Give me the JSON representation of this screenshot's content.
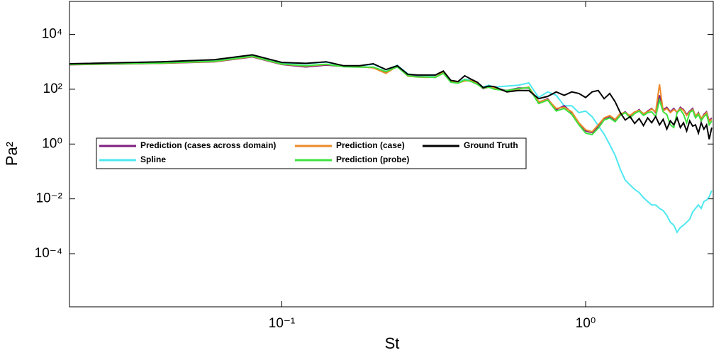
{
  "chart_data": {
    "type": "line",
    "x_label": "St",
    "y_label": "Pa²",
    "xscale": "log",
    "yscale": "log",
    "xlim": [
      0.02,
      2.63
    ],
    "ylim": [
      1.15e-06,
      160000
    ],
    "xticks": [
      {
        "value": 0.1,
        "label": "10⁻¹"
      },
      {
        "value": 1,
        "label": "10⁰"
      }
    ],
    "yticks": [
      {
        "value": 0.0001,
        "label": "10⁻⁴"
      },
      {
        "value": 0.01,
        "label": "10⁻²"
      },
      {
        "value": 1,
        "label": "10⁰"
      },
      {
        "value": 100,
        "label": "10²"
      },
      {
        "value": 10000,
        "label": "10⁴"
      }
    ],
    "x": [
      0.02,
      0.04,
      0.06,
      0.08,
      0.1,
      0.12,
      0.14,
      0.16,
      0.18,
      0.2,
      0.22,
      0.24,
      0.26,
      0.28,
      0.3,
      0.32,
      0.34,
      0.36,
      0.38,
      0.4,
      0.42,
      0.44,
      0.46,
      0.48,
      0.5,
      0.55,
      0.6,
      0.65,
      0.7,
      0.75,
      0.8,
      0.85,
      0.9,
      0.95,
      1.0,
      1.05,
      1.1,
      1.15,
      1.2,
      1.25,
      1.3,
      1.35,
      1.4,
      1.45,
      1.5,
      1.55,
      1.6,
      1.65,
      1.7,
      1.75,
      1.8,
      1.85,
      1.9,
      1.95,
      2.0,
      2.05,
      2.1,
      2.15,
      2.2,
      2.25,
      2.3,
      2.35,
      2.4,
      2.45,
      2.5,
      2.55,
      2.6
    ],
    "series": [
      {
        "name": "Prediction (cases across domain)",
        "color": "#7e1e80",
        "values": [
          780,
          880,
          1000,
          1500,
          800,
          650,
          760,
          680,
          650,
          620,
          420,
          680,
          310,
          290,
          280,
          270,
          400,
          190,
          170,
          210,
          200,
          160,
          105,
          120,
          110,
          90,
          110,
          110,
          33,
          45,
          18,
          25,
          14,
          5.6,
          3,
          2.6,
          4.2,
          8.5,
          10,
          7.5,
          12,
          15,
          10,
          14,
          18,
          12,
          16,
          20,
          14,
          60,
          18,
          22,
          15,
          20,
          14,
          22,
          18,
          12,
          16,
          20,
          10,
          14,
          8,
          12,
          15,
          7,
          9
        ]
      },
      {
        "name": "Prediction (case)",
        "color": "#ee8a2a",
        "values": [
          790,
          890,
          1020,
          1550,
          820,
          700,
          800,
          680,
          660,
          600,
          380,
          690,
          300,
          280,
          270,
          280,
          410,
          190,
          170,
          200,
          210,
          160,
          108,
          118,
          112,
          85,
          100,
          120,
          35,
          42,
          20,
          22,
          15,
          6,
          3.3,
          2.8,
          5,
          9,
          11,
          8,
          13,
          14,
          11,
          15,
          17,
          13,
          15,
          19,
          15,
          150,
          16,
          20,
          14,
          18,
          15,
          20,
          17,
          11,
          15,
          18,
          11,
          13,
          9,
          11,
          14,
          6.5,
          8
        ]
      },
      {
        "name": "Ground Truth",
        "color": "#000000",
        "values": [
          850,
          1000,
          1200,
          1800,
          950,
          880,
          1000,
          720,
          720,
          850,
          520,
          720,
          350,
          330,
          330,
          330,
          460,
          210,
          190,
          310,
          230,
          180,
          115,
          130,
          125,
          80,
          90,
          90,
          45,
          55,
          80,
          60,
          80,
          70,
          50,
          80,
          90,
          45,
          70,
          35,
          14,
          7.5,
          10,
          5.6,
          8.5,
          4.7,
          9,
          6,
          10,
          5,
          8,
          3.5,
          7,
          5,
          9,
          4,
          6,
          3,
          7,
          4.5,
          5,
          2.5,
          6,
          3.5,
          5,
          1.5,
          4
        ]
      },
      {
        "name": "Spline",
        "color": "#4ee8f0",
        "values": [
          820,
          960,
          1150,
          1750,
          920,
          850,
          980,
          700,
          700,
          820,
          510,
          740,
          360,
          320,
          320,
          300,
          450,
          200,
          180,
          230,
          220,
          170,
          120,
          140,
          120,
          130,
          140,
          170,
          50,
          80,
          60,
          25,
          25,
          14,
          16,
          10,
          4.7,
          2.3,
          0.95,
          0.39,
          0.12,
          0.048,
          0.032,
          0.022,
          0.017,
          0.011,
          0.008,
          0.006,
          0.006,
          0.0045,
          0.0037,
          0.0025,
          0.0014,
          0.0011,
          0.0006,
          0.0009,
          0.0011,
          0.0014,
          0.0018,
          0.0033,
          0.0045,
          0.006,
          0.0045,
          0.008,
          0.009,
          0.012,
          0.02
        ]
      },
      {
        "name": "Prediction (probe)",
        "color": "#3ee23e",
        "values": [
          800,
          900,
          1050,
          1600,
          830,
          720,
          820,
          660,
          640,
          640,
          440,
          650,
          310,
          280,
          280,
          270,
          380,
          180,
          165,
          220,
          190,
          150,
          110,
          120,
          100,
          90,
          105,
          115,
          30,
          40,
          16,
          20,
          12,
          5,
          2.5,
          2.2,
          3.8,
          7.5,
          9,
          6.5,
          11,
          14,
          9,
          13,
          16,
          11,
          14,
          15,
          10,
          40,
          15,
          12,
          5,
          4,
          14,
          18,
          12,
          6,
          14,
          17,
          9,
          12,
          7,
          10,
          12,
          5,
          7
        ]
      }
    ]
  }
}
